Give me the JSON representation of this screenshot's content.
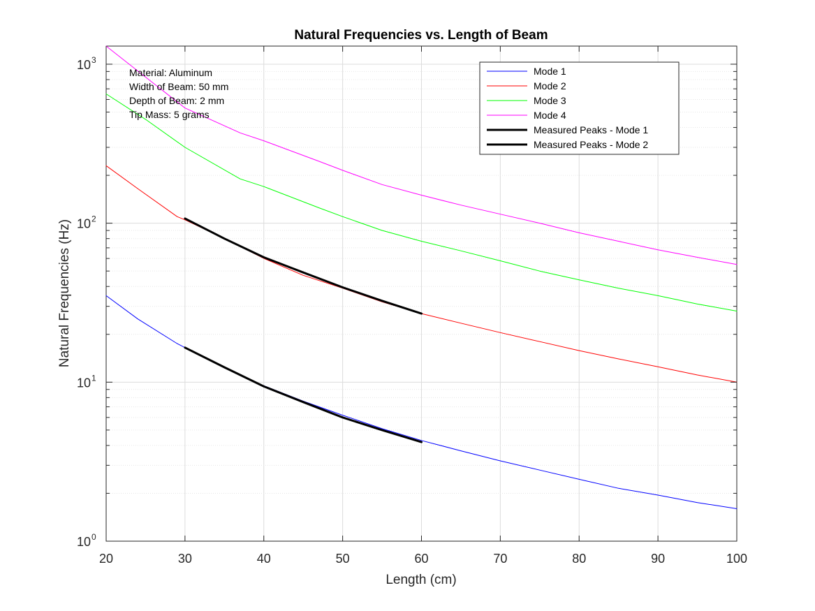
{
  "chart_data": {
    "type": "line",
    "title": "Natural Frequencies vs. Length of Beam",
    "xlabel": "Length (cm)",
    "ylabel": "Natural Frequencies (Hz)",
    "xlim": [
      20,
      100
    ],
    "ylim": [
      1,
      1300
    ],
    "yscale": "log",
    "grid": true,
    "minor_grid": true,
    "legend_position": "top-right",
    "x_ticks": [
      "20",
      "30",
      "40",
      "50",
      "60",
      "70",
      "80",
      "90",
      "100"
    ],
    "y_ticks": [
      {
        "base": "10",
        "exp": "0",
        "value": 1
      },
      {
        "base": "10",
        "exp": "1",
        "value": 10
      },
      {
        "base": "10",
        "exp": "2",
        "value": 100
      },
      {
        "base": "10",
        "exp": "3",
        "value": 1000
      }
    ],
    "annotations": [
      "Material: Aluminum",
      "Width of Beam: 50 mm",
      "Depth of Beam: 2 mm",
      "Tip Mass: 5 grams"
    ],
    "series": [
      {
        "name": "Mode 1",
        "color": "#0000ff",
        "width": 1,
        "x": [
          20,
          24,
          29,
          30,
          35,
          40,
          45,
          50,
          55,
          60,
          65,
          70,
          75,
          80,
          85,
          90,
          95,
          100
        ],
        "y": [
          35,
          25,
          17.5,
          16.5,
          12.3,
          9.5,
          7.6,
          6.2,
          5.1,
          4.3,
          3.7,
          3.2,
          2.8,
          2.45,
          2.15,
          1.95,
          1.75,
          1.6
        ]
      },
      {
        "name": "Mode 2",
        "color": "#ff0000",
        "width": 1,
        "x": [
          20,
          24,
          29,
          30,
          35,
          40,
          45,
          50,
          55,
          60,
          65,
          70,
          75,
          80,
          85,
          90,
          95,
          100
        ],
        "y": [
          230,
          165,
          110,
          105,
          80,
          60,
          47,
          39,
          32,
          27,
          23.5,
          20.5,
          18,
          15.8,
          14,
          12.5,
          11.1,
          10
        ]
      },
      {
        "name": "Mode 3",
        "color": "#00ff00",
        "width": 1,
        "x": [
          20,
          25,
          30,
          37,
          40,
          47,
          50,
          55,
          60,
          65,
          70,
          75,
          80,
          85,
          90,
          95,
          100
        ],
        "y": [
          650,
          450,
          300,
          190,
          170,
          125,
          110,
          90,
          77,
          67,
          58,
          50,
          44,
          39,
          35,
          31,
          28
        ]
      },
      {
        "name": "Mode 4",
        "color": "#ff00ff",
        "width": 1,
        "x": [
          20,
          25,
          30,
          37,
          40,
          47,
          50,
          55,
          60,
          65,
          70,
          75,
          80,
          85,
          90,
          95,
          100
        ],
        "y": [
          1300,
          830,
          530,
          370,
          330,
          245,
          215,
          175,
          150,
          130,
          114,
          100,
          87,
          77,
          68,
          61,
          55
        ]
      },
      {
        "name": "Measured Peaks - Mode 1",
        "color": "#000000",
        "width": 3,
        "x": [
          30,
          35,
          40,
          45,
          50,
          55,
          60
        ],
        "y": [
          16.5,
          12.4,
          9.4,
          7.5,
          6.0,
          5.0,
          4.2
        ]
      },
      {
        "name": "Measured Peaks - Mode 2",
        "color": "#000000",
        "width": 3,
        "x": [
          30,
          35,
          40,
          45,
          50,
          55,
          60
        ],
        "y": [
          107,
          80,
          61,
          49,
          39.5,
          32.5,
          27
        ]
      }
    ]
  }
}
